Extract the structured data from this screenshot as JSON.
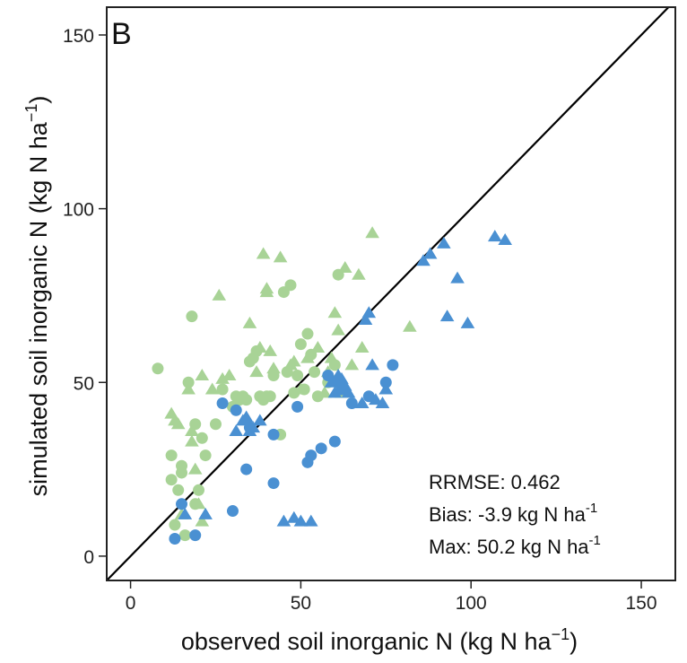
{
  "chart_data": {
    "type": "scatter",
    "panel_label": "B",
    "xlabel": "observed soil inorganic N (kg N  ha",
    "xlabel_sup": "−1",
    "xlabel_end": ")",
    "ylabel": "simulated soil inorganic N (kg N  ha",
    "ylabel_sup": "−1",
    "ylabel_end": ")",
    "xlim": [
      -7,
      160
    ],
    "ylim": [
      -7,
      158
    ],
    "xticks": [
      0,
      50,
      100,
      150
    ],
    "yticks": [
      0,
      50,
      100,
      150
    ],
    "reference_line": "1:1",
    "stats": {
      "rrmse": "RRMSE: 0.462",
      "bias": "Bias: -3.9 kg N ha",
      "bias_sup": "-1",
      "max": "Max: 50.2 kg N ha",
      "max_sup": "-1"
    },
    "colors": {
      "green": "#a8d396",
      "blue": "#4a90d2",
      "line": "#000000"
    },
    "series": [
      {
        "color": "green",
        "marker": "circle",
        "points": [
          [
            8,
            54
          ],
          [
            12,
            22
          ],
          [
            12,
            29
          ],
          [
            13,
            9
          ],
          [
            14,
            19
          ],
          [
            15,
            24
          ],
          [
            15,
            26
          ],
          [
            16,
            6
          ],
          [
            17,
            50
          ],
          [
            18,
            69
          ],
          [
            19,
            15
          ],
          [
            19,
            38
          ],
          [
            20,
            19
          ],
          [
            21,
            34
          ],
          [
            22,
            29
          ],
          [
            25,
            38
          ],
          [
            27,
            48
          ],
          [
            30,
            43
          ],
          [
            31,
            46
          ],
          [
            32,
            45
          ],
          [
            33,
            46
          ],
          [
            34,
            45
          ],
          [
            35,
            56
          ],
          [
            36,
            57
          ],
          [
            37,
            59
          ],
          [
            38,
            46
          ],
          [
            39,
            45
          ],
          [
            40,
            46
          ],
          [
            41,
            46
          ],
          [
            42,
            52
          ],
          [
            44,
            35
          ],
          [
            45,
            76
          ],
          [
            46,
            53
          ],
          [
            47,
            78
          ],
          [
            48,
            47
          ],
          [
            49,
            52
          ],
          [
            50,
            61
          ],
          [
            51,
            48
          ],
          [
            52,
            64
          ],
          [
            53,
            58
          ],
          [
            54,
            53
          ],
          [
            55,
            46
          ],
          [
            58,
            50
          ],
          [
            60,
            55
          ],
          [
            61,
            81
          ]
        ]
      },
      {
        "color": "green",
        "marker": "triangle",
        "points": [
          [
            12,
            41
          ],
          [
            13,
            39
          ],
          [
            14,
            38
          ],
          [
            15,
            12
          ],
          [
            17,
            48
          ],
          [
            18,
            33
          ],
          [
            18,
            36
          ],
          [
            19,
            25
          ],
          [
            20,
            15
          ],
          [
            21,
            52
          ],
          [
            21,
            10
          ],
          [
            24,
            48
          ],
          [
            26,
            75
          ],
          [
            27,
            51
          ],
          [
            29,
            52
          ],
          [
            35,
            67
          ],
          [
            37,
            53
          ],
          [
            38,
            60
          ],
          [
            39,
            87
          ],
          [
            40,
            76
          ],
          [
            40,
            77
          ],
          [
            41,
            59
          ],
          [
            42,
            54
          ],
          [
            44,
            86
          ],
          [
            47,
            55
          ],
          [
            48,
            56
          ],
          [
            50,
            48
          ],
          [
            52,
            57
          ],
          [
            55,
            60
          ],
          [
            57,
            47
          ],
          [
            58,
            53
          ],
          [
            59,
            57
          ],
          [
            60,
            70
          ],
          [
            61,
            65
          ],
          [
            62,
            47
          ],
          [
            63,
            83
          ],
          [
            65,
            55
          ],
          [
            67,
            81
          ],
          [
            68,
            60
          ],
          [
            71,
            93
          ],
          [
            82,
            66
          ]
        ]
      },
      {
        "color": "blue",
        "marker": "circle",
        "points": [
          [
            13,
            5
          ],
          [
            15,
            15
          ],
          [
            19,
            6
          ],
          [
            27,
            44
          ],
          [
            30,
            13
          ],
          [
            31,
            42
          ],
          [
            34,
            25
          ],
          [
            35,
            37
          ],
          [
            42,
            35
          ],
          [
            42,
            21
          ],
          [
            49,
            43
          ],
          [
            52,
            27
          ],
          [
            53,
            29
          ],
          [
            56,
            31
          ],
          [
            58,
            52
          ],
          [
            60,
            33
          ],
          [
            61,
            50
          ],
          [
            62,
            48
          ],
          [
            65,
            44
          ],
          [
            70,
            46
          ],
          [
            75,
            50
          ],
          [
            77,
            55
          ]
        ]
      },
      {
        "color": "blue",
        "marker": "triangle",
        "points": [
          [
            16,
            12
          ],
          [
            22,
            12
          ],
          [
            31,
            36
          ],
          [
            33,
            39
          ],
          [
            34,
            40
          ],
          [
            35,
            36
          ],
          [
            36,
            37
          ],
          [
            38,
            39
          ],
          [
            45,
            10
          ],
          [
            48,
            11
          ],
          [
            50,
            10
          ],
          [
            53,
            10
          ],
          [
            59,
            50
          ],
          [
            60,
            47
          ],
          [
            61,
            52
          ],
          [
            62,
            51
          ],
          [
            63,
            49
          ],
          [
            64,
            47
          ],
          [
            68,
            44
          ],
          [
            69,
            68
          ],
          [
            70,
            70
          ],
          [
            71,
            55
          ],
          [
            72,
            45
          ],
          [
            74,
            44
          ],
          [
            75,
            48
          ],
          [
            86,
            85
          ],
          [
            88,
            87
          ],
          [
            92,
            90
          ],
          [
            93,
            69
          ],
          [
            96,
            80
          ],
          [
            99,
            67
          ],
          [
            107,
            92
          ],
          [
            110,
            91
          ]
        ]
      }
    ]
  }
}
